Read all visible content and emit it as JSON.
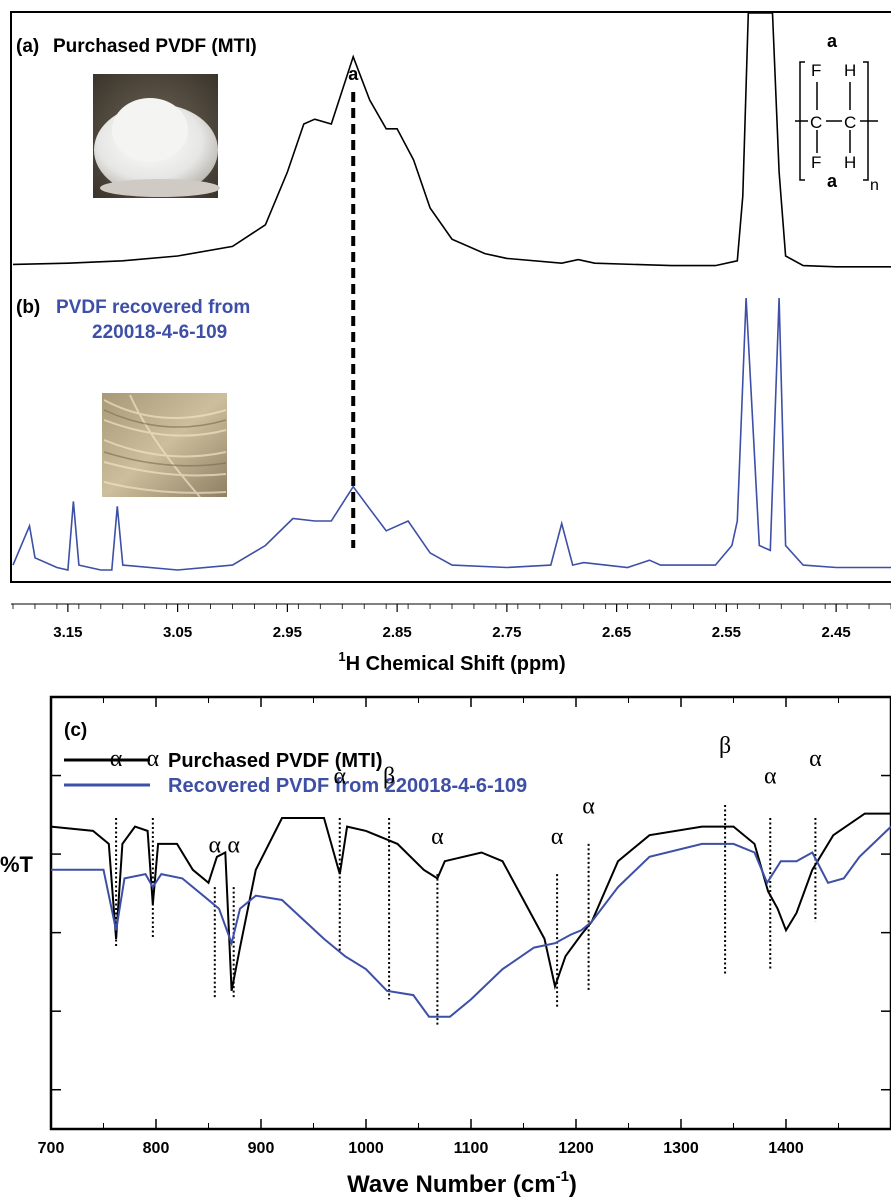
{
  "chart_data": [
    {
      "type": "line",
      "panel": "NMR",
      "xlabel_sup": "1",
      "xlabel": "H Chemical Shift (ppm)",
      "x_reversed": true,
      "xlim": [
        3.2,
        2.4
      ],
      "xticks": [
        "3.15",
        "3.05",
        "2.95",
        "2.85",
        "2.75",
        "2.65",
        "2.55",
        "2.45"
      ],
      "grid": false,
      "marker_label": "a",
      "marker_x": 2.89,
      "structure": {
        "top_label": "a",
        "bottom_label": "a",
        "subscript": "n",
        "atoms": [
          "F",
          "H",
          "C",
          "C",
          "F",
          "H"
        ]
      },
      "series": [
        {
          "panel_label": "(a)",
          "name": "Purchased PVDF (MTI)",
          "color": "#000000",
          "points": [
            [
              3.2,
              0.015
            ],
            [
              3.15,
              0.02
            ],
            [
              3.1,
              0.03
            ],
            [
              3.05,
              0.05
            ],
            [
              3.0,
              0.09
            ],
            [
              2.97,
              0.18
            ],
            [
              2.95,
              0.4
            ],
            [
              2.935,
              0.6
            ],
            [
              2.925,
              0.62
            ],
            [
              2.91,
              0.6
            ],
            [
              2.89,
              0.88
            ],
            [
              2.875,
              0.7
            ],
            [
              2.86,
              0.58
            ],
            [
              2.85,
              0.58
            ],
            [
              2.835,
              0.45
            ],
            [
              2.82,
              0.25
            ],
            [
              2.8,
              0.12
            ],
            [
              2.77,
              0.06
            ],
            [
              2.75,
              0.04
            ],
            [
              2.7,
              0.02
            ],
            [
              2.685,
              0.035
            ],
            [
              2.67,
              0.02
            ],
            [
              2.6,
              0.01
            ],
            [
              2.56,
              0.01
            ],
            [
              2.54,
              0.03
            ],
            [
              2.535,
              0.3
            ],
            [
              2.53,
              1.6
            ],
            [
              2.522,
              1.6
            ],
            [
              2.508,
              1.6
            ],
            [
              2.502,
              0.4
            ],
            [
              2.496,
              0.05
            ],
            [
              2.48,
              0.01
            ],
            [
              2.45,
              0.005
            ],
            [
              2.4,
              0.005
            ]
          ]
        },
        {
          "panel_label": "(b)",
          "name": "PVDF recovered from 220018-4-6-109",
          "color": "#3d4fa6",
          "points": [
            [
              3.2,
              0.02
            ],
            [
              3.185,
              0.18
            ],
            [
              3.18,
              0.05
            ],
            [
              3.16,
              0.01
            ],
            [
              3.15,
              0.0
            ],
            [
              3.145,
              0.28
            ],
            [
              3.14,
              0.02
            ],
            [
              3.12,
              0.0
            ],
            [
              3.11,
              0.0
            ],
            [
              3.105,
              0.26
            ],
            [
              3.1,
              0.02
            ],
            [
              3.05,
              0.0
            ],
            [
              3.0,
              0.02
            ],
            [
              2.97,
              0.1
            ],
            [
              2.945,
              0.21
            ],
            [
              2.925,
              0.2
            ],
            [
              2.91,
              0.2
            ],
            [
              2.89,
              0.34
            ],
            [
              2.875,
              0.25
            ],
            [
              2.86,
              0.16
            ],
            [
              2.84,
              0.2
            ],
            [
              2.82,
              0.07
            ],
            [
              2.8,
              0.02
            ],
            [
              2.75,
              0.01
            ],
            [
              2.71,
              0.02
            ],
            [
              2.7,
              0.19
            ],
            [
              2.69,
              0.02
            ],
            [
              2.68,
              0.03
            ],
            [
              2.66,
              0.02
            ],
            [
              2.64,
              0.01
            ],
            [
              2.62,
              0.04
            ],
            [
              2.61,
              0.02
            ],
            [
              2.56,
              0.02
            ],
            [
              2.545,
              0.1
            ],
            [
              2.54,
              0.2
            ],
            [
              2.532,
              1.6
            ],
            [
              2.52,
              0.1
            ],
            [
              2.51,
              0.08
            ],
            [
              2.502,
              1.6
            ],
            [
              2.496,
              0.1
            ],
            [
              2.48,
              0.02
            ],
            [
              2.45,
              0.01
            ],
            [
              2.4,
              0.01
            ]
          ]
        }
      ]
    },
    {
      "type": "line",
      "panel": "FTIR",
      "panel_label": "(c)",
      "xlabel": "Wave Number (cm",
      "xlabel_sup": "-1",
      "xlabel_close": ")",
      "ylabel": "%T",
      "xlim": [
        700,
        1500
      ],
      "ylim": [
        0,
        100
      ],
      "xticks": [
        700,
        800,
        900,
        1000,
        1100,
        1200,
        1300,
        1400
      ],
      "grid": false,
      "legend_position": "top-left",
      "series": [
        {
          "name": "Purchased PVDF (MTI)",
          "color": "#000000",
          "points": [
            [
              700,
              70
            ],
            [
              740,
              69
            ],
            [
              755,
              66
            ],
            [
              762,
              44
            ],
            [
              768,
              66
            ],
            [
              780,
              70
            ],
            [
              792,
              69
            ],
            [
              797,
              52
            ],
            [
              802,
              66
            ],
            [
              820,
              66
            ],
            [
              835,
              60
            ],
            [
              850,
              57
            ],
            [
              858,
              63
            ],
            [
              866,
              64
            ],
            [
              872,
              32
            ],
            [
              880,
              42
            ],
            [
              895,
              60
            ],
            [
              920,
              72
            ],
            [
              960,
              72
            ],
            [
              975,
              59
            ],
            [
              982,
              70
            ],
            [
              1000,
              69
            ],
            [
              1030,
              66
            ],
            [
              1055,
              60
            ],
            [
              1068,
              58
            ],
            [
              1075,
              62
            ],
            [
              1110,
              64
            ],
            [
              1130,
              62
            ],
            [
              1150,
              53
            ],
            [
              1170,
              44
            ],
            [
              1180,
              33
            ],
            [
              1190,
              40
            ],
            [
              1205,
              45
            ],
            [
              1215,
              48
            ],
            [
              1240,
              62
            ],
            [
              1270,
              68
            ],
            [
              1320,
              70
            ],
            [
              1350,
              70
            ],
            [
              1370,
              66
            ],
            [
              1383,
              55
            ],
            [
              1392,
              51
            ],
            [
              1400,
              46
            ],
            [
              1410,
              50
            ],
            [
              1425,
              60
            ],
            [
              1445,
              68
            ],
            [
              1475,
              73
            ],
            [
              1500,
              73
            ]
          ]
        },
        {
          "name": "Recovered PVDF from 220018-4-6-109",
          "color": "#3d4fa6",
          "points": [
            [
              700,
              60
            ],
            [
              750,
              60
            ],
            [
              762,
              46
            ],
            [
              770,
              58
            ],
            [
              790,
              59
            ],
            [
              797,
              56
            ],
            [
              805,
              59
            ],
            [
              825,
              58
            ],
            [
              845,
              54
            ],
            [
              860,
              51
            ],
            [
              872,
              43
            ],
            [
              880,
              51
            ],
            [
              895,
              54
            ],
            [
              920,
              53
            ],
            [
              960,
              44
            ],
            [
              980,
              40
            ],
            [
              1000,
              37
            ],
            [
              1020,
              32
            ],
            [
              1045,
              31
            ],
            [
              1060,
              26
            ],
            [
              1080,
              26
            ],
            [
              1100,
              30
            ],
            [
              1130,
              37
            ],
            [
              1160,
              42
            ],
            [
              1180,
              43
            ],
            [
              1195,
              45
            ],
            [
              1205,
              46
            ],
            [
              1215,
              48
            ],
            [
              1240,
              56
            ],
            [
              1270,
              63
            ],
            [
              1320,
              66
            ],
            [
              1350,
              66
            ],
            [
              1370,
              64
            ],
            [
              1382,
              57
            ],
            [
              1395,
              62
            ],
            [
              1410,
              62
            ],
            [
              1425,
              64
            ],
            [
              1440,
              57
            ],
            [
              1455,
              58
            ],
            [
              1470,
              63
            ],
            [
              1500,
              70
            ]
          ]
        }
      ],
      "annotations": [
        {
          "x": 762,
          "label": "α",
          "y_label": 84,
          "y_top": 72,
          "y_bottom": 42
        },
        {
          "x": 797,
          "label": "α",
          "y_label": 84,
          "y_top": 72,
          "y_bottom": 44
        },
        {
          "x": 856,
          "label": "α",
          "y_label": 64,
          "y_top": 56,
          "y_bottom": 30
        },
        {
          "x": 874,
          "label": "α",
          "y_label": 64,
          "y_top": 56,
          "y_bottom": 30
        },
        {
          "x": 975,
          "label": "α",
          "y_label": 80,
          "y_top": 72,
          "y_bottom": 41
        },
        {
          "x": 1022,
          "label": "β",
          "y_label": 80,
          "y_top": 72,
          "y_bottom": 30
        },
        {
          "x": 1068,
          "label": "α",
          "y_label": 66,
          "y_top": 59,
          "y_bottom": 24
        },
        {
          "x": 1182,
          "label": "α",
          "y_label": 66,
          "y_top": 59,
          "y_bottom": 28
        },
        {
          "x": 1212,
          "label": "α",
          "y_label": 73,
          "y_top": 66,
          "y_bottom": 32
        },
        {
          "x": 1342,
          "label": "β",
          "y_label": 87,
          "y_top": 75,
          "y_bottom": 36
        },
        {
          "x": 1385,
          "label": "α",
          "y_label": 80,
          "y_top": 72,
          "y_bottom": 37
        },
        {
          "x": 1428,
          "label": "α",
          "y_label": 84,
          "y_top": 72,
          "y_bottom": 48
        }
      ]
    }
  ]
}
